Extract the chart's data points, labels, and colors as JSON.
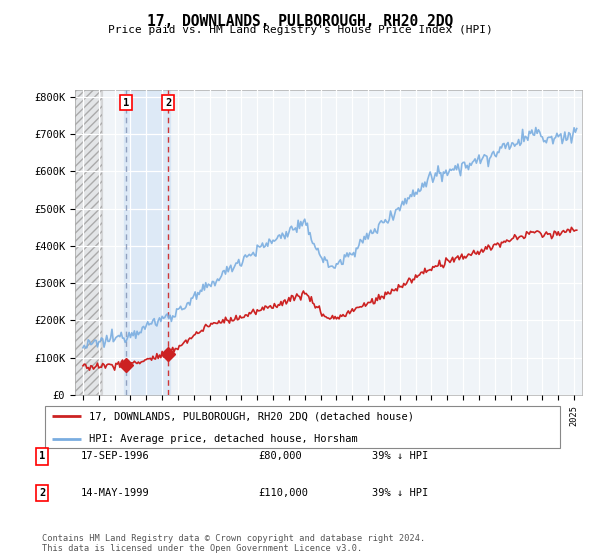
{
  "title": "17, DOWNLANDS, PULBOROUGH, RH20 2DQ",
  "subtitle": "Price paid vs. HM Land Registry's House Price Index (HPI)",
  "legend_line1": "17, DOWNLANDS, PULBOROUGH, RH20 2DQ (detached house)",
  "legend_line2": "HPI: Average price, detached house, Horsham",
  "transaction1_date": "17-SEP-1996",
  "transaction1_price": "£80,000",
  "transaction1_hpi": "39% ↓ HPI",
  "transaction1_year": 1996.72,
  "transaction1_value": 80000,
  "transaction2_date": "14-MAY-1999",
  "transaction2_price": "£110,000",
  "transaction2_hpi": "39% ↓ HPI",
  "transaction2_year": 1999.37,
  "transaction2_value": 110000,
  "footnote": "Contains HM Land Registry data © Crown copyright and database right 2024.\nThis data is licensed under the Open Government Licence v3.0.",
  "red_color": "#cc2222",
  "blue_color": "#7aade0",
  "background_plot": "#f0f4f8",
  "hatch_color": "#d8d8d8",
  "highlight_color": "#ddeeff",
  "ylim": [
    0,
    820000
  ],
  "xlim_start": 1993.5,
  "xlim_end": 2025.5
}
